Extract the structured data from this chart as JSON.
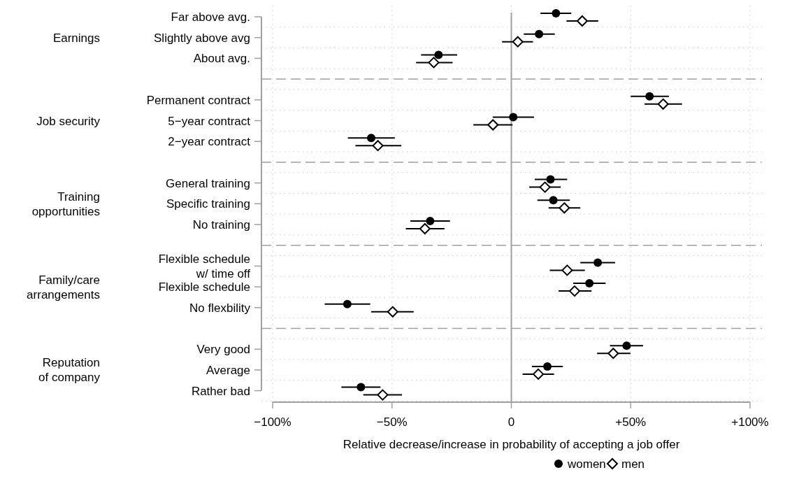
{
  "chart_data": {
    "type": "scatter",
    "orientation": "horizontal",
    "xlabel": "Relative decrease/increase in probability of accepting a job offer",
    "categories": [
      "Far above avg.",
      "Slightly above avg",
      "About avg.",
      null,
      "Permanent contract",
      "5−year contract",
      "2−year contract",
      null,
      "General training",
      "Specific training",
      "No training",
      null,
      "Flexible schedule\nw/ time off",
      "Flexible schedule",
      "No flexbility",
      null,
      "Very good",
      "Average",
      "Rather bad"
    ],
    "series": [
      {
        "name": "women",
        "color": "#000000",
        "marker": "circle",
        "values": [
          18.7,
          11.6,
          -30.5,
          null,
          57.9,
          0.8,
          -58.7,
          null,
          16.4,
          17.6,
          -34,
          null,
          36.2,
          32.7,
          -68.7,
          null,
          48.3,
          15.1,
          -63
        ],
        "errors": [
          [
            12.2,
            25.1
          ],
          [
            5.2,
            18.2
          ],
          [
            -37.8,
            -22.7
          ],
          null,
          [
            50,
            66
          ],
          [
            -7.8,
            9.5
          ],
          [
            -68.5,
            -48.8
          ],
          null,
          [
            9.8,
            23.4
          ],
          [
            10.9,
            24.5
          ],
          [
            -42.3,
            -25.7
          ],
          null,
          [
            28.9,
            43.5
          ],
          [
            25.9,
            39.5
          ],
          [
            -78.2,
            -59.1
          ],
          null,
          [
            41.3,
            55.2
          ],
          [
            8.6,
            21.6
          ],
          [
            -71.2,
            -54.8
          ]
        ]
      },
      {
        "name": "men",
        "color": "#000000",
        "marker": "diamond",
        "values": [
          29.7,
          2.7,
          -32.5,
          null,
          63.6,
          -7.7,
          -55.9,
          null,
          14.1,
          22.2,
          -36.2,
          null,
          23.4,
          26.5,
          -49.7,
          null,
          42.7,
          11.3,
          -53.9
        ],
        "errors": [
          [
            23.1,
            36.4
          ],
          [
            -3.9,
            9.1
          ],
          [
            -39.9,
            -24.6
          ],
          null,
          [
            55.8,
            71.5
          ],
          [
            -15.9,
            0.5
          ],
          [
            -65.3,
            -46.1
          ],
          null,
          [
            7.5,
            20.7
          ],
          [
            15.6,
            28.9
          ],
          [
            -44.2,
            -28
          ],
          null,
          [
            16.1,
            30.8
          ],
          [
            19.8,
            33.6
          ],
          [
            -58.7,
            -40.9
          ],
          null,
          [
            35.9,
            49.9
          ],
          [
            4.7,
            17.9
          ],
          [
            -62,
            -45.8
          ]
        ]
      }
    ],
    "xlim": [
      -100,
      100
    ],
    "xticks": [
      {
        "value": -100,
        "label": "−100%"
      },
      {
        "value": -50,
        "label": "−50%"
      },
      0,
      {
        "value": 50,
        "label": "+50%"
      },
      {
        "value": 100,
        "label": "+100%"
      }
    ],
    "ref_lines": [
      {
        "axis": "x",
        "value": 0,
        "color": "#a0a0a0",
        "line_style": "solid"
      }
    ],
    "annotations": [
      "Earnings",
      "Job security",
      "Training\nopportunities",
      "Family/care\narrangements",
      "Reputation\nof company"
    ],
    "grid": true,
    "legend": "bottom"
  }
}
